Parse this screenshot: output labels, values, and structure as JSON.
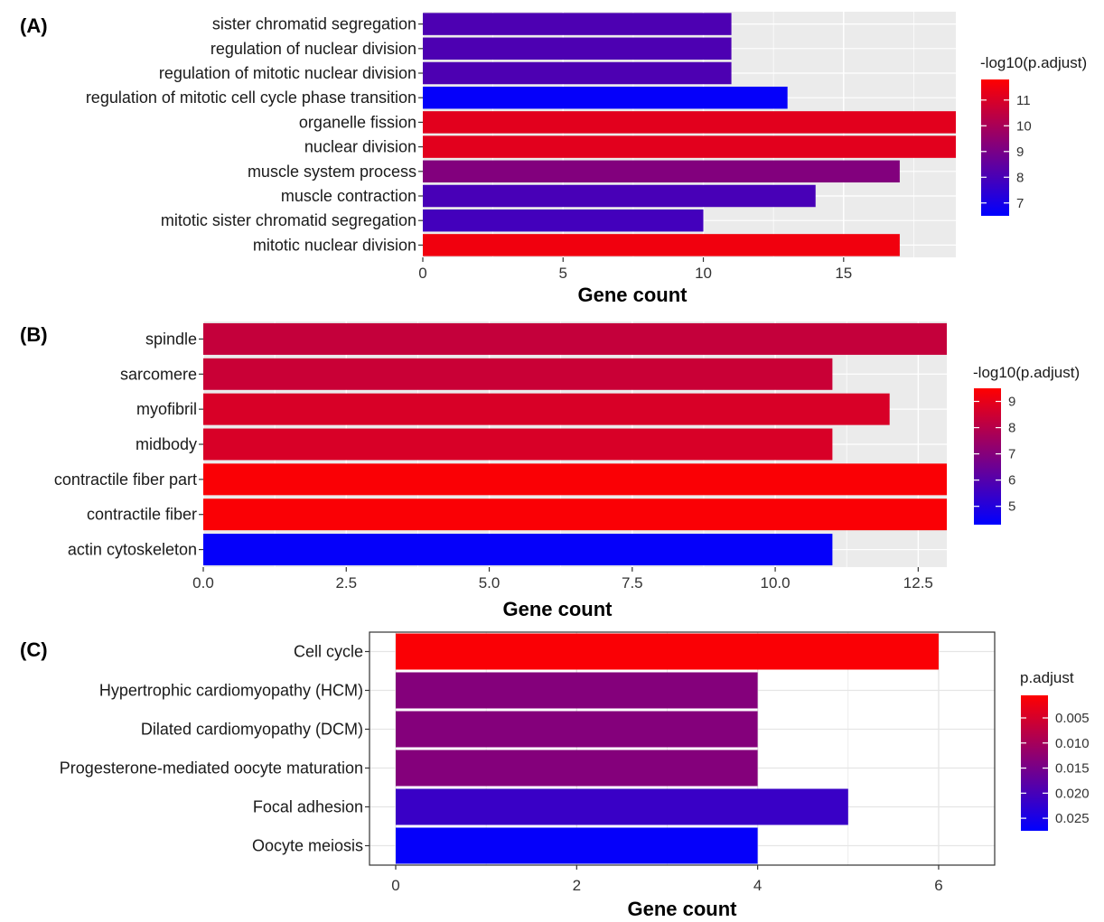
{
  "chart_data": [
    {
      "panel_label": "(A)",
      "type": "bar",
      "orientation": "horizontal",
      "xlabel": "Gene count",
      "ylabel": "",
      "xlim": [
        0,
        19
      ],
      "x_ticks": [
        0,
        5,
        10,
        15
      ],
      "x_tick_labels": [
        "0",
        "5",
        "10",
        "15"
      ],
      "background": "grey",
      "grid": true,
      "legend": {
        "title": "-log10(p.adjust)",
        "position": "right",
        "range": [
          6.5,
          11.8
        ],
        "ticks": [
          7,
          8,
          9,
          10,
          11
        ],
        "tick_labels": [
          "7",
          "8",
          "9",
          "10",
          "11"
        ],
        "high_color": "#ff0000",
        "low_color": "#0000ff"
      },
      "categories": [
        "sister chromatid segregation",
        "regulation of nuclear division",
        "regulation of mitotic nuclear division",
        "regulation of mitotic cell cycle phase transition",
        "organelle fission",
        "nuclear division",
        "muscle system process",
        "muscle contraction",
        "mitotic sister chromatid segregation",
        "mitotic nuclear division"
      ],
      "values": [
        11,
        11,
        11,
        13,
        19,
        19,
        17,
        14,
        10,
        17
      ],
      "color_values": [
        8.1,
        8.1,
        8.1,
        6.6,
        11.2,
        11.2,
        9.2,
        8.0,
        7.9,
        11.5
      ]
    },
    {
      "panel_label": "(B)",
      "type": "bar",
      "orientation": "horizontal",
      "xlabel": "Gene count",
      "ylabel": "",
      "xlim": [
        0,
        13
      ],
      "x_ticks": [
        0,
        2.5,
        5,
        7.5,
        10,
        12.5
      ],
      "x_tick_labels": [
        "0.0",
        "2.5",
        "5.0",
        "7.5",
        "10.0",
        "12.5"
      ],
      "background": "grey",
      "grid": true,
      "legend": {
        "title": "-log10(p.adjust)",
        "position": "right",
        "range": [
          4.3,
          9.5
        ],
        "ticks": [
          5,
          6,
          7,
          8,
          9
        ],
        "tick_labels": [
          "5",
          "6",
          "7",
          "8",
          "9"
        ],
        "high_color": "#ff0000",
        "low_color": "#0000ff"
      },
      "categories": [
        "spindle",
        "sarcomere",
        "myofibril",
        "midbody",
        "contractile fiber part",
        "contractile fiber",
        "actin cytoskeleton"
      ],
      "values": [
        13,
        11,
        12,
        11,
        13,
        13,
        11
      ],
      "color_values": [
        8.3,
        8.4,
        8.7,
        8.7,
        9.4,
        9.4,
        4.4
      ]
    },
    {
      "panel_label": "(C)",
      "type": "bar",
      "orientation": "horizontal",
      "xlabel": "Gene count",
      "ylabel": "",
      "xlim": [
        0,
        6.3
      ],
      "x_ticks": [
        0,
        2,
        4,
        6
      ],
      "x_tick_labels": [
        "0",
        "2",
        "4",
        "6"
      ],
      "background": "white",
      "grid": true,
      "legend": {
        "title": "p.adjust",
        "position": "right",
        "range": [
          0.0275,
          0.0005
        ],
        "ticks": [
          0.005,
          0.01,
          0.015,
          0.02,
          0.025
        ],
        "tick_labels": [
          "0.005",
          "0.010",
          "0.015",
          "0.020",
          "0.025"
        ],
        "high_color": "#ff0000",
        "low_color": "#0000ff",
        "reversed": true
      },
      "categories": [
        "Cell cycle",
        "Hypertrophic cardiomyopathy (HCM)",
        "Dilated cardiomyopathy (DCM)",
        "Progesterone-mediated oocyte maturation",
        "Focal adhesion",
        "Oocyte meiosis"
      ],
      "values": [
        6,
        4,
        4,
        4,
        5,
        4
      ],
      "color_values": [
        0.001,
        0.0135,
        0.0135,
        0.0135,
        0.0215,
        0.027
      ]
    }
  ]
}
